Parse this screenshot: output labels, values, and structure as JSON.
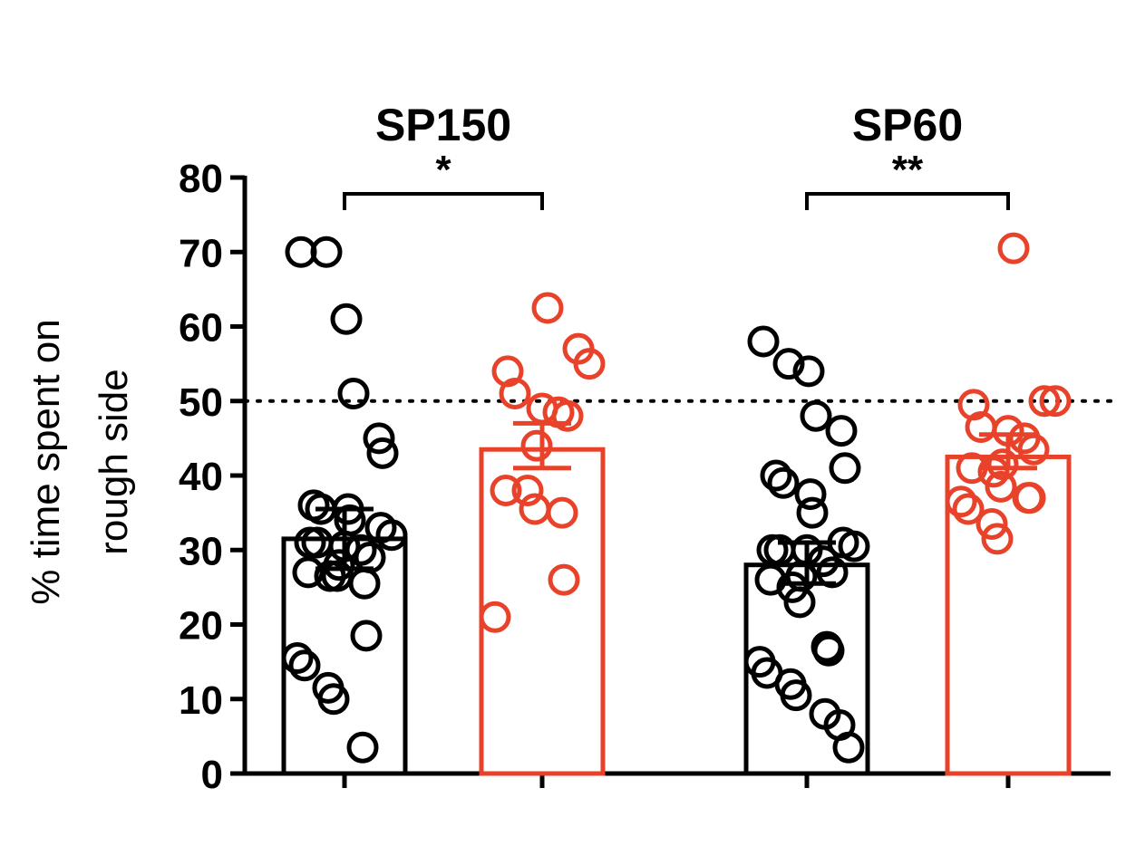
{
  "chart_data": {
    "type": "bar",
    "ylabel_lines": [
      "% time spent on",
      "rough side"
    ],
    "ylim": [
      0,
      80
    ],
    "yticks": [
      "0",
      "10",
      "20",
      "30",
      "40",
      "50",
      "60",
      "70",
      "80"
    ],
    "reference_line": 50,
    "colors": {
      "control": "#000000",
      "treated": "#e8432a"
    },
    "groups": [
      {
        "title": "SP150",
        "significance": "*",
        "bars": [
          {
            "color": "control",
            "mean": 31.5,
            "sem_low": 27.5,
            "sem_high": 35.5,
            "points": [
              70,
              70,
              61,
              51,
              45,
              43,
              36,
              35.5,
              35.5,
              34,
              33,
              32,
              31,
              31,
              30.5,
              30,
              29,
              28,
              27,
              26.5,
              26.5,
              25.5,
              18.5,
              15.5,
              14.5,
              11.5,
              10,
              3.5
            ]
          },
          {
            "color": "treated",
            "mean": 43.5,
            "sem_low": 41,
            "sem_high": 47,
            "points": [
              62.5,
              57,
              55,
              54,
              51,
              49,
              48.5,
              48,
              44,
              38,
              38,
              35.5,
              35,
              26,
              21
            ]
          }
        ]
      },
      {
        "title": "SP60",
        "significance": "**",
        "bars": [
          {
            "color": "control",
            "mean": 28,
            "sem_low": 25.5,
            "sem_high": 31,
            "points": [
              58,
              55,
              54,
              48,
              46,
              41,
              40,
              39,
              37.5,
              35,
              31,
              30.5,
              30,
              30,
              30,
              28.5,
              27,
              26.5,
              26,
              25,
              23,
              17,
              16.5,
              15,
              13.5,
              12,
              10.5,
              8,
              6.5,
              3.5
            ]
          },
          {
            "color": "treated",
            "mean": 42.5,
            "sem_low": 41,
            "sem_high": 45.5,
            "points": [
              70.5,
              50,
              50,
              49.5,
              46.5,
              46,
              45,
              43.5,
              41.5,
              41,
              40.5,
              38.5,
              37,
              37,
              36.5,
              35.5,
              33.5,
              31.5
            ]
          }
        ]
      }
    ]
  }
}
